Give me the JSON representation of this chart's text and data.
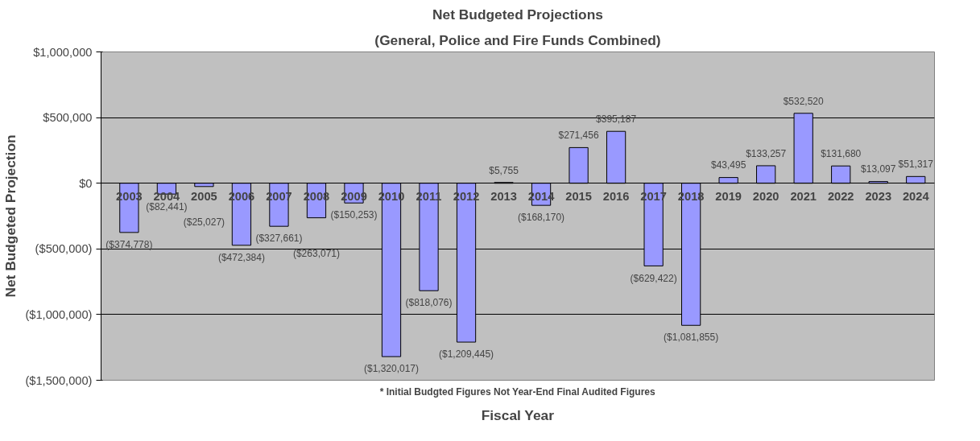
{
  "chart_data": {
    "type": "bar",
    "title": "Net Budgeted Projections",
    "subtitle": "(General, Police and Fire Funds Combined)",
    "xlabel": "Fiscal Year",
    "ylabel": "Net Budgeted Projection",
    "categories": [
      "2003",
      "2004",
      "2005",
      "2006",
      "2007",
      "2008",
      "2009",
      "2010",
      "2011",
      "2012",
      "2013",
      "2014",
      "2015",
      "2016",
      "2017",
      "2018",
      "2019",
      "2020",
      "2021",
      "2022",
      "2023",
      "2024"
    ],
    "values": [
      -374778,
      -82441,
      -25027,
      -472384,
      -327661,
      -263071,
      -150253,
      -1320017,
      -818076,
      -1209445,
      5755,
      -168170,
      271456,
      395187,
      -629422,
      -1081855,
      43495,
      133257,
      532520,
      131680,
      13097,
      51317
    ],
    "value_labels": [
      "($374,778)",
      "($82,441)",
      "($25,027)",
      "($472,384)",
      "($327,661)",
      "($263,071)",
      "($150,253)",
      "($1,320,017)",
      "($818,076)",
      "($1,209,445)",
      "$5,755",
      "($168,170)",
      "$271,456",
      "$395,187",
      "($629,422)",
      "($1,081,855)",
      "$43,495",
      "$133,257",
      "$532,520",
      "$131,680",
      "$13,097",
      "$51,317"
    ],
    "color": "#9999ff",
    "ylim": [
      -1500000,
      1000000
    ],
    "yticks": [
      {
        "value": -1500000,
        "label": "($1,500,000)"
      },
      {
        "value": -1000000,
        "label": "($1,000,000)"
      },
      {
        "value": -500000,
        "label": "($500,000)"
      },
      {
        "value": 0,
        "label": "$0"
      },
      {
        "value": 500000,
        "label": "$500,000"
      },
      {
        "value": 1000000,
        "label": "$1,000,000"
      }
    ],
    "grid": "y",
    "annotations": [
      "* Initial Budgted Figures Not Year-End Final Audited Figures"
    ]
  }
}
